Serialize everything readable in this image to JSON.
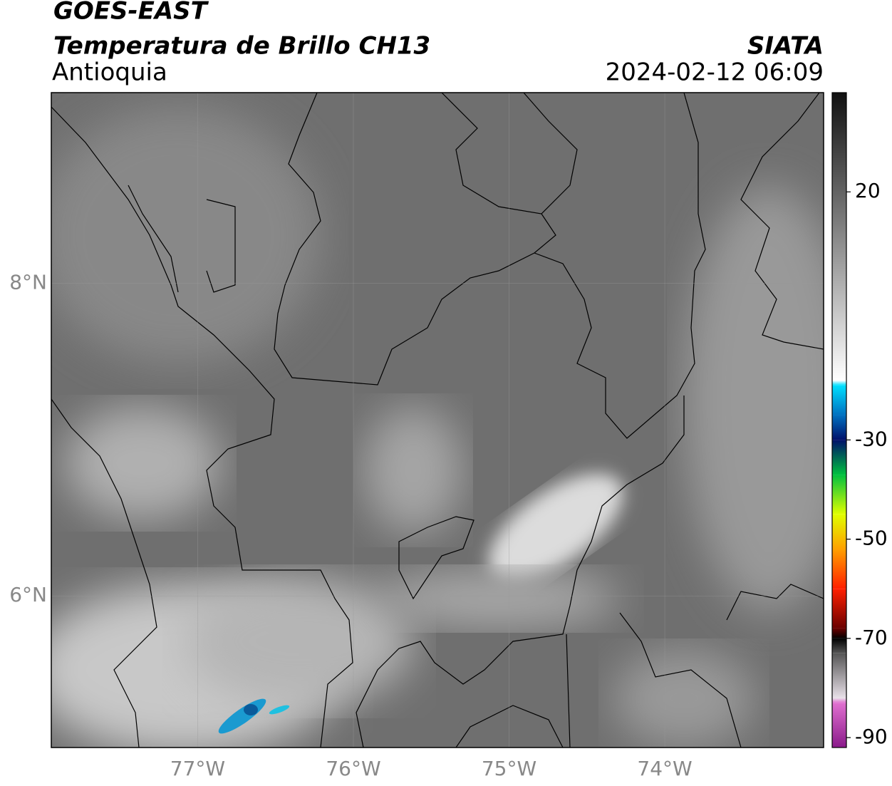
{
  "header": {
    "satellite": "GOES-EAST",
    "product": "Temperatura de Brillo CH13",
    "region": "Antioquia",
    "source": "SIATA",
    "datetime": "2024-02-12 06:09"
  },
  "map": {
    "xlim": [
      -77.94,
      -72.98
    ],
    "ylim": [
      5.03,
      9.22
    ],
    "xticks": [
      {
        "value": -77,
        "label": "77°W"
      },
      {
        "value": -76,
        "label": "76°W"
      },
      {
        "value": -75,
        "label": "75°W"
      },
      {
        "value": -74,
        "label": "74°W"
      }
    ],
    "yticks": [
      {
        "value": 8,
        "label": "8°N"
      },
      {
        "value": 6,
        "label": "6°N"
      }
    ],
    "grid": true
  },
  "colorbar": {
    "lim": [
      -92,
      40
    ],
    "ticks": [
      20,
      -30,
      -50,
      -70,
      -90
    ],
    "stops": [
      {
        "value": -92,
        "color": "#8a1a8a"
      },
      {
        "value": -83,
        "color": "#e070d0"
      },
      {
        "value": -82,
        "color": "#e8e0e8"
      },
      {
        "value": -73,
        "color": "#555555"
      },
      {
        "value": -70,
        "color": "#000000"
      },
      {
        "value": -68,
        "color": "#6a0000"
      },
      {
        "value": -60,
        "color": "#ff2000"
      },
      {
        "value": -52,
        "color": "#ffa000"
      },
      {
        "value": -45,
        "color": "#e0ff00"
      },
      {
        "value": -37,
        "color": "#00c040"
      },
      {
        "value": -30,
        "color": "#00106a"
      },
      {
        "value": -25,
        "color": "#0070c0"
      },
      {
        "value": -19,
        "color": "#00e0ff"
      },
      {
        "value": -18,
        "color": "#ffffff"
      },
      {
        "value": 40,
        "color": "#111111"
      }
    ]
  }
}
